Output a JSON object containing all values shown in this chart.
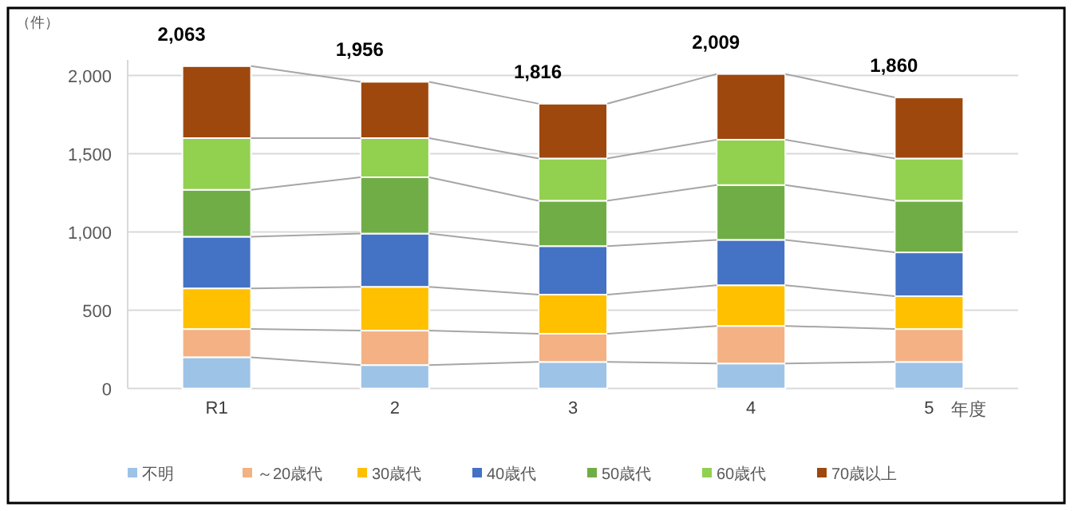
{
  "chart_data": {
    "type": "bar",
    "stacked": true,
    "ylabel": "（件）",
    "xlabel": "年度",
    "categories": [
      "R1",
      "2",
      "3",
      "4",
      "5"
    ],
    "series": [
      {
        "name": "不明",
        "color": "#9dc3e6",
        "values": [
          200,
          150,
          170,
          160,
          170
        ]
      },
      {
        "name": "～20歳代",
        "color": "#f4b183",
        "values": [
          180,
          220,
          180,
          240,
          210
        ]
      },
      {
        "name": "30歳代",
        "color": "#ffc000",
        "values": [
          260,
          280,
          250,
          260,
          210
        ]
      },
      {
        "name": "40歳代",
        "color": "#4472c4",
        "values": [
          330,
          340,
          310,
          290,
          280
        ]
      },
      {
        "name": "50歳代",
        "color": "#70ad47",
        "values": [
          300,
          360,
          290,
          350,
          330
        ]
      },
      {
        "name": "60歳代",
        "color": "#92d050",
        "values": [
          330,
          250,
          270,
          290,
          270
        ]
      },
      {
        "name": "70歳以上",
        "color": "#9e480e",
        "values": [
          460,
          360,
          350,
          420,
          390
        ]
      }
    ],
    "totals": [
      "2,063",
      "1,956",
      "1,816",
      "2,009",
      "1,860"
    ],
    "ylim": [
      0,
      2100
    ],
    "yticks": [
      0,
      {
        "value": 500,
        "label": "500"
      },
      {
        "value": 1000,
        "label": "1,000"
      },
      {
        "value": 1500,
        "label": "1,500"
      },
      {
        "value": 2000,
        "label": "2,000"
      }
    ],
    "grid": "y",
    "legend": "bottom"
  }
}
